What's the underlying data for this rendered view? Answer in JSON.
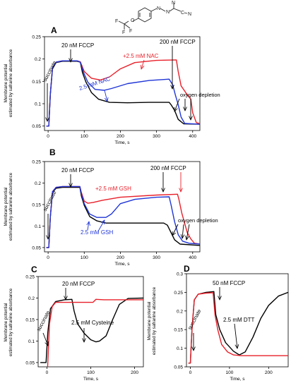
{
  "figure": {
    "colors": {
      "black": "#000000",
      "red": "#e8202a",
      "blue": "#1f35d6"
    }
  },
  "chart_data": [
    {
      "panel": "A",
      "type": "line",
      "xlabel": "Time, s",
      "ylabel": [
        "Membrane potential",
        "estimated by safranine absorbance"
      ],
      "xlim": [
        -10,
        420
      ],
      "ylim": [
        0.04,
        0.25
      ],
      "xticks": [
        0,
        100,
        200,
        300,
        400
      ],
      "yticks": [
        0.05,
        0.1,
        0.15,
        0.2,
        0.25
      ],
      "series": [
        {
          "color": "black",
          "points": [
            [
              -5,
              0.05
            ],
            [
              2,
              0.05
            ],
            [
              6,
              0.12
            ],
            [
              12,
              0.178
            ],
            [
              22,
              0.192
            ],
            [
              40,
              0.195
            ],
            [
              80,
              0.195
            ],
            [
              89,
              0.193
            ],
            [
              95,
              0.17
            ],
            [
              105,
              0.148
            ],
            [
              120,
              0.125
            ],
            [
              140,
              0.11
            ],
            [
              170,
              0.103
            ],
            [
              220,
              0.102
            ],
            [
              280,
              0.103
            ],
            [
              335,
              0.103
            ],
            [
              340,
              0.098
            ],
            [
              350,
              0.085
            ],
            [
              360,
              0.065
            ],
            [
              375,
              0.055
            ],
            [
              420,
              0.054
            ]
          ]
        },
        {
          "color": "red",
          "points": [
            [
              -5,
              0.05
            ],
            [
              2,
              0.05
            ],
            [
              6,
              0.12
            ],
            [
              12,
              0.18
            ],
            [
              22,
              0.193
            ],
            [
              40,
              0.196
            ],
            [
              80,
              0.196
            ],
            [
              89,
              0.194
            ],
            [
              100,
              0.172
            ],
            [
              120,
              0.157
            ],
            [
              145,
              0.153
            ],
            [
              170,
              0.16
            ],
            [
              200,
              0.178
            ],
            [
              240,
              0.192
            ],
            [
              300,
              0.197
            ],
            [
              355,
              0.198
            ],
            [
              360,
              0.172
            ],
            [
              368,
              0.14
            ],
            [
              385,
              0.12
            ],
            [
              395,
              0.11
            ],
            [
              400,
              0.08
            ],
            [
              410,
              0.058
            ],
            [
              420,
              0.055
            ]
          ]
        },
        {
          "color": "blue",
          "points": [
            [
              -5,
              0.05
            ],
            [
              2,
              0.05
            ],
            [
              6,
              0.12
            ],
            [
              12,
              0.18
            ],
            [
              22,
              0.193
            ],
            [
              40,
              0.196
            ],
            [
              80,
              0.196
            ],
            [
              89,
              0.193
            ],
            [
              98,
              0.17
            ],
            [
              110,
              0.148
            ],
            [
              130,
              0.132
            ],
            [
              155,
              0.13
            ],
            [
              175,
              0.134
            ],
            [
              220,
              0.145
            ],
            [
              280,
              0.152
            ],
            [
              335,
              0.155
            ],
            [
              345,
              0.142
            ],
            [
              352,
              0.12
            ],
            [
              360,
              0.098
            ],
            [
              368,
              0.07
            ],
            [
              378,
              0.056
            ],
            [
              420,
              0.054
            ]
          ]
        }
      ],
      "labels": {
        "fccp1": "20 nM FCCP",
        "fccp2": "200 nM FCCP",
        "treat_red": "+2.5 mM NAC",
        "treat_blue": "2.5 mM NAC",
        "succinate": "succinate",
        "oxygen": "oxygen depletion"
      },
      "panel_label": "A"
    },
    {
      "panel": "B",
      "type": "line",
      "xlabel": "Time, s",
      "ylabel": [
        "Membrane potential",
        "estimated by safranine absorbance"
      ],
      "xlim": [
        -10,
        420
      ],
      "ylim": [
        0.04,
        0.25
      ],
      "xticks": [
        0,
        100,
        200,
        300,
        400
      ],
      "yticks": [
        0.05,
        0.1,
        0.15,
        0.2,
        0.25
      ],
      "series": [
        {
          "color": "black",
          "points": [
            [
              -5,
              0.05
            ],
            [
              2,
              0.05
            ],
            [
              6,
              0.12
            ],
            [
              12,
              0.178
            ],
            [
              22,
              0.188
            ],
            [
              40,
              0.19
            ],
            [
              88,
              0.19
            ],
            [
              92,
              0.17
            ],
            [
              100,
              0.148
            ],
            [
              115,
              0.122
            ],
            [
              135,
              0.112
            ],
            [
              160,
              0.107
            ],
            [
              220,
              0.107
            ],
            [
              320,
              0.107
            ],
            [
              330,
              0.102
            ],
            [
              340,
              0.085
            ],
            [
              350,
              0.068
            ],
            [
              365,
              0.058
            ],
            [
              420,
              0.055
            ]
          ]
        },
        {
          "color": "red",
          "points": [
            [
              -5,
              0.05
            ],
            [
              2,
              0.05
            ],
            [
              6,
              0.12
            ],
            [
              12,
              0.18
            ],
            [
              22,
              0.19
            ],
            [
              40,
              0.192
            ],
            [
              88,
              0.192
            ],
            [
              92,
              0.178
            ],
            [
              100,
              0.158
            ],
            [
              110,
              0.153
            ],
            [
              125,
              0.155
            ],
            [
              150,
              0.16
            ],
            [
              200,
              0.167
            ],
            [
              300,
              0.172
            ],
            [
              358,
              0.174
            ],
            [
              362,
              0.162
            ],
            [
              370,
              0.13
            ],
            [
              385,
              0.085
            ],
            [
              395,
              0.07
            ],
            [
              405,
              0.06
            ],
            [
              420,
              0.058
            ]
          ]
        },
        {
          "color": "blue",
          "points": [
            [
              -5,
              0.05
            ],
            [
              2,
              0.05
            ],
            [
              6,
              0.12
            ],
            [
              12,
              0.18
            ],
            [
              22,
              0.19
            ],
            [
              40,
              0.192
            ],
            [
              88,
              0.192
            ],
            [
              92,
              0.175
            ],
            [
              100,
              0.152
            ],
            [
              115,
              0.128
            ],
            [
              135,
              0.12
            ],
            [
              160,
              0.12
            ],
            [
              175,
              0.128
            ],
            [
              200,
              0.152
            ],
            [
              240,
              0.162
            ],
            [
              300,
              0.167
            ],
            [
              335,
              0.168
            ],
            [
              340,
              0.15
            ],
            [
              350,
              0.11
            ],
            [
              360,
              0.08
            ],
            [
              372,
              0.065
            ],
            [
              390,
              0.06
            ],
            [
              420,
              0.058
            ]
          ]
        }
      ],
      "labels": {
        "fccp1": "20 nM FCCP",
        "fccp2": "200 nM FCCP",
        "treat_red": "+2.5 mM GSH",
        "treat_blue": "2.5 mM GSH",
        "succinate": "succinate",
        "oxygen": "oxygen depletion"
      },
      "panel_label": "B"
    },
    {
      "panel": "C",
      "type": "line",
      "xlabel": "Time, s",
      "ylabel": [
        "Membrane potential",
        "estimated by safranine absorbance"
      ],
      "xlim": [
        -20,
        220
      ],
      "ylim": [
        0.04,
        0.25
      ],
      "xticks": [
        0,
        100,
        200
      ],
      "yticks": [
        0.05,
        0.1,
        0.15,
        0.2,
        0.25
      ],
      "series": [
        {
          "color": "black",
          "points": [
            [
              -15,
              0.05
            ],
            [
              -2,
              0.05
            ],
            [
              2,
              0.12
            ],
            [
              8,
              0.175
            ],
            [
              20,
              0.192
            ],
            [
              40,
              0.196
            ],
            [
              57,
              0.197
            ],
            [
              62,
              0.17
            ],
            [
              70,
              0.14
            ],
            [
              85,
              0.118
            ],
            [
              100,
              0.103
            ],
            [
              112,
              0.098
            ],
            [
              120,
              0.1
            ],
            [
              135,
              0.112
            ],
            [
              150,
              0.15
            ],
            [
              165,
              0.185
            ],
            [
              185,
              0.199
            ],
            [
              220,
              0.2
            ]
          ]
        },
        {
          "color": "red",
          "points": [
            [
              0,
              0.0
            ],
            [
              2,
              0.05
            ],
            [
              6,
              0.14
            ],
            [
              12,
              0.18
            ],
            [
              20,
              0.19
            ],
            [
              40,
              0.19
            ],
            [
              80,
              0.19
            ],
            [
              105,
              0.19
            ],
            [
              112,
              0.197
            ],
            [
              130,
              0.196
            ],
            [
              220,
              0.196
            ]
          ]
        }
      ],
      "labels": {
        "fccp1": "20 nM FCCP",
        "treatment": "2.5 mM Cysteine",
        "succinate": "succinate"
      },
      "panel_label": "C"
    },
    {
      "panel": "D",
      "type": "line",
      "xlabel": "Time, s",
      "ylabel": [
        "Membrane potential",
        "estimated by safranine absorbance"
      ],
      "xlim": [
        -10,
        250
      ],
      "ylim": [
        0.05,
        0.3
      ],
      "xticks": [
        0,
        100,
        200
      ],
      "yticks": [
        0.05,
        0.1,
        0.15,
        0.2,
        0.25,
        0.3
      ],
      "series": [
        {
          "color": "black",
          "points": [
            [
              -5,
              0.06
            ],
            [
              0,
              0.06
            ],
            [
              4,
              0.15
            ],
            [
              10,
              0.23
            ],
            [
              20,
              0.245
            ],
            [
              40,
              0.25
            ],
            [
              60,
              0.252
            ],
            [
              65,
              0.19
            ],
            [
              75,
              0.15
            ],
            [
              90,
              0.115
            ],
            [
              110,
              0.092
            ],
            [
              125,
              0.082
            ],
            [
              140,
              0.09
            ],
            [
              160,
              0.13
            ],
            [
              180,
              0.18
            ],
            [
              200,
              0.215
            ],
            [
              225,
              0.24
            ],
            [
              250,
              0.25
            ]
          ]
        },
        {
          "color": "red",
          "points": [
            [
              -5,
              0.06
            ],
            [
              0,
              0.06
            ],
            [
              4,
              0.15
            ],
            [
              10,
              0.23
            ],
            [
              20,
              0.245
            ],
            [
              40,
              0.248
            ],
            [
              58,
              0.249
            ],
            [
              63,
              0.19
            ],
            [
              70,
              0.15
            ],
            [
              80,
              0.11
            ],
            [
              95,
              0.09
            ],
            [
              110,
              0.082
            ],
            [
              130,
              0.08
            ],
            [
              250,
              0.08
            ]
          ]
        }
      ],
      "labels": {
        "fccp1": "50 nM FCCP",
        "treatment": "2.5 mM DTT",
        "succinate": "succinate"
      },
      "panel_label": "D"
    }
  ],
  "structure": {
    "labels": [
      "F",
      "F",
      "F",
      "O",
      "N",
      "N",
      "N",
      "C",
      "N"
    ]
  }
}
